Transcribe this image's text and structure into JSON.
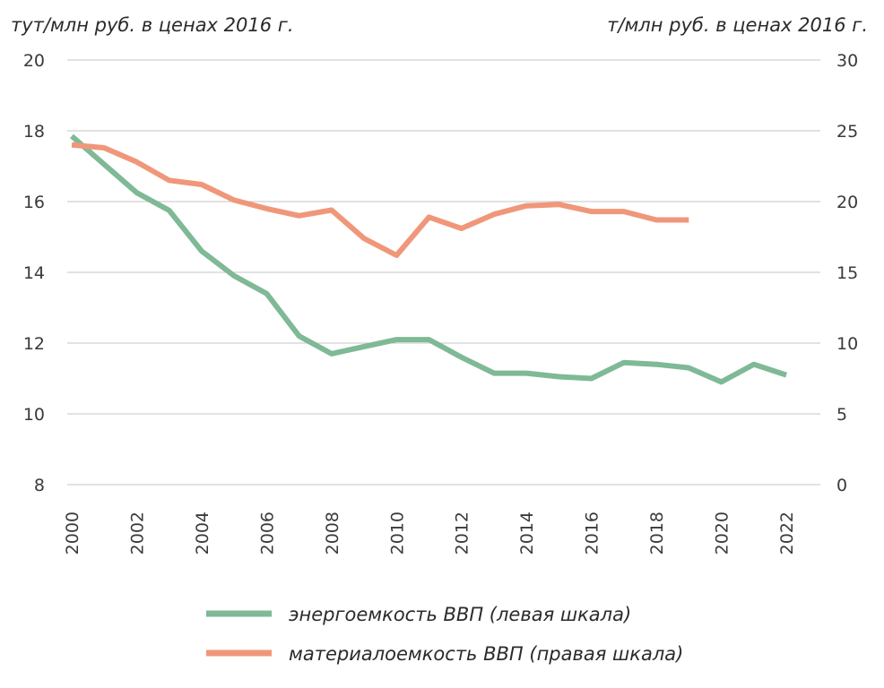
{
  "chart_data": {
    "type": "line",
    "title": "",
    "left_axis_label": "тут/млн руб. в ценах 2016 г.",
    "right_axis_label": "т/млн руб. в ценах 2016 г.",
    "left_ylim": [
      8,
      20
    ],
    "left_ticks": [
      "20",
      "18",
      "16",
      "14",
      "12",
      "10",
      "8"
    ],
    "right_ylim": [
      0,
      30
    ],
    "right_ticks": [
      "30",
      "25",
      "20",
      "15",
      "10",
      "5",
      "0"
    ],
    "x_ticks": [
      "2000",
      "2002",
      "2004",
      "2006",
      "2008",
      "2010",
      "2012",
      "2014",
      "2016",
      "2018",
      "2020",
      "2022"
    ],
    "grid": "horizontal",
    "series": [
      {
        "name": "энергоемкость ВВП (левая шкала)",
        "axis": "left",
        "color": "#7fb996",
        "x": [
          2000,
          2001,
          2002,
          2003,
          2004,
          2005,
          2006,
          2007,
          2008,
          2009,
          2010,
          2011,
          2012,
          2013,
          2014,
          2015,
          2016,
          2017,
          2018,
          2019,
          2020,
          2021,
          2022
        ],
        "values": [
          17.85,
          17.05,
          16.25,
          15.75,
          14.6,
          13.9,
          13.4,
          12.2,
          11.7,
          11.9,
          12.1,
          12.1,
          11.6,
          11.15,
          11.15,
          11.05,
          11.0,
          11.45,
          11.4,
          11.3,
          10.9,
          11.4,
          11.1
        ]
      },
      {
        "name": "материалоемкость ВВП (правая шкала)",
        "axis": "right",
        "color": "#f0977a",
        "x": [
          2000,
          2001,
          2002,
          2003,
          2004,
          2005,
          2006,
          2007,
          2008,
          2009,
          2010,
          2011,
          2012,
          2013,
          2014,
          2015,
          2016,
          2017,
          2018,
          2019
        ],
        "values": [
          24.0,
          23.8,
          22.8,
          21.5,
          21.2,
          20.1,
          19.5,
          19.0,
          19.4,
          17.4,
          16.2,
          18.9,
          18.1,
          19.1,
          19.7,
          19.8,
          19.3,
          19.3,
          18.7,
          18.7
        ]
      }
    ],
    "legend_position": "bottom"
  }
}
